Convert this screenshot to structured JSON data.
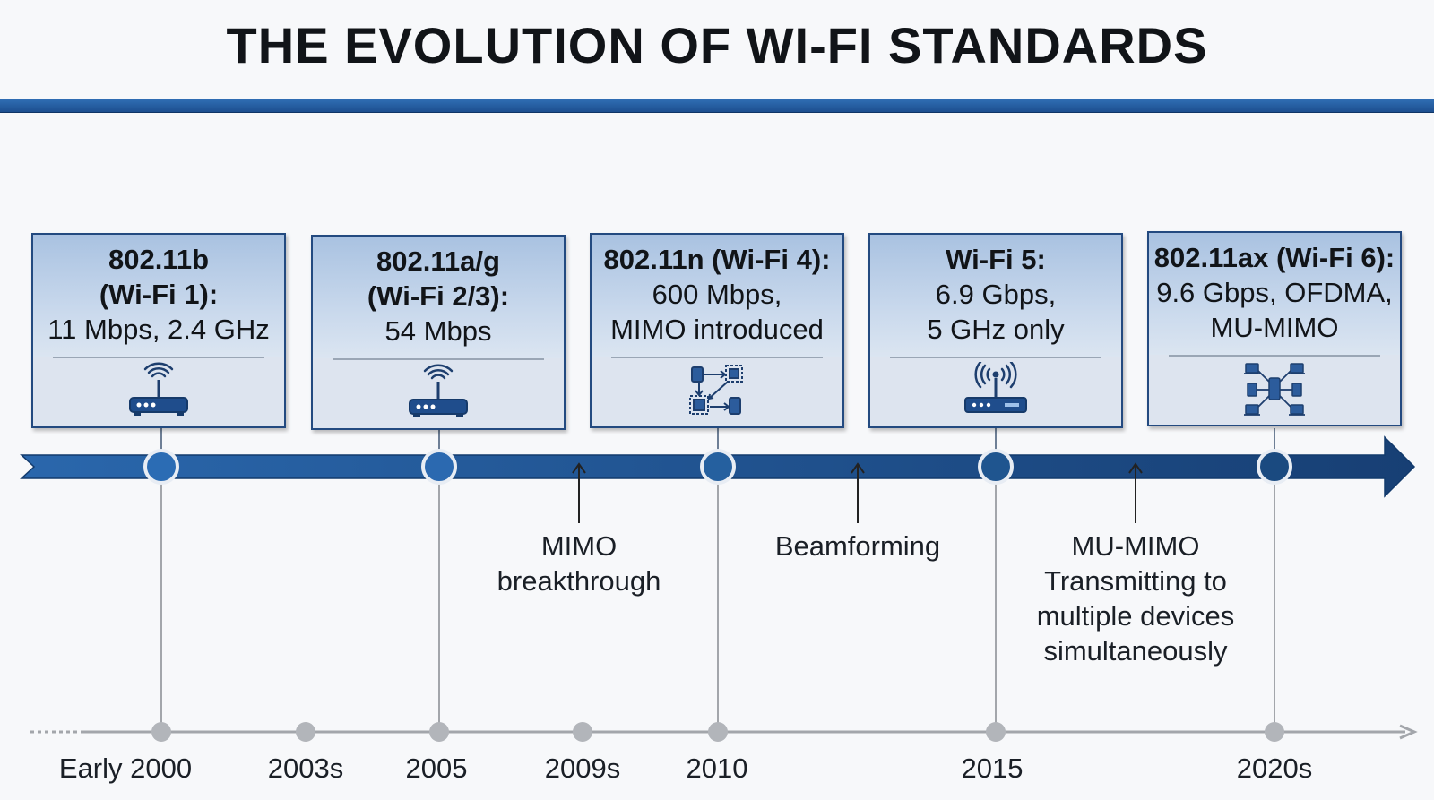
{
  "title": "THE EVOLUTION OF WI-FI STANDARDS",
  "colors": {
    "arrow": "#1d4f8f",
    "accent": "#2f6db3",
    "node_ring": "#ffffff",
    "gray_line": "#a3a6ab"
  },
  "cards": [
    {
      "title": "802.11b",
      "lines": [
        "(Wi-Fi 1):",
        "11 Mbps, 2.4 GHz"
      ],
      "bold_lines": 2,
      "icon": "router-icon"
    },
    {
      "title": "802.11a/g",
      "lines": [
        "(Wi-Fi 2/3):",
        "54 Mbps"
      ],
      "bold_lines": 2,
      "icon": "router-icon"
    },
    {
      "title": "802.11n (Wi-Fi 4):",
      "lines": [
        "600 Mbps,",
        "MIMO introduced"
      ],
      "bold_lines": 1,
      "icon": "mimo-network-icon"
    },
    {
      "title": "Wi-Fi 5:",
      "lines": [
        "6.9 Gbps,",
        "5 GHz only"
      ],
      "bold_lines": 1,
      "icon": "router-icon"
    },
    {
      "title": "802.11ax (Wi-Fi 6):",
      "lines": [
        "9.6 Gbps, OFDMA,",
        "MU-MIMO"
      ],
      "bold_lines": 1,
      "icon": "mu-mimo-network-icon"
    }
  ],
  "milestones": [
    {
      "lines": [
        "MIMO",
        "breakthrough"
      ]
    },
    {
      "lines": [
        "Beamforming"
      ]
    },
    {
      "lines": [
        "MU-MIMO",
        "Transmitting to",
        "multiple devices",
        "simultaneously"
      ]
    }
  ],
  "timeline_labels": [
    "Early 2000",
    "2003s",
    "2005",
    "2009s",
    "2010",
    "2015",
    "2020s"
  ]
}
